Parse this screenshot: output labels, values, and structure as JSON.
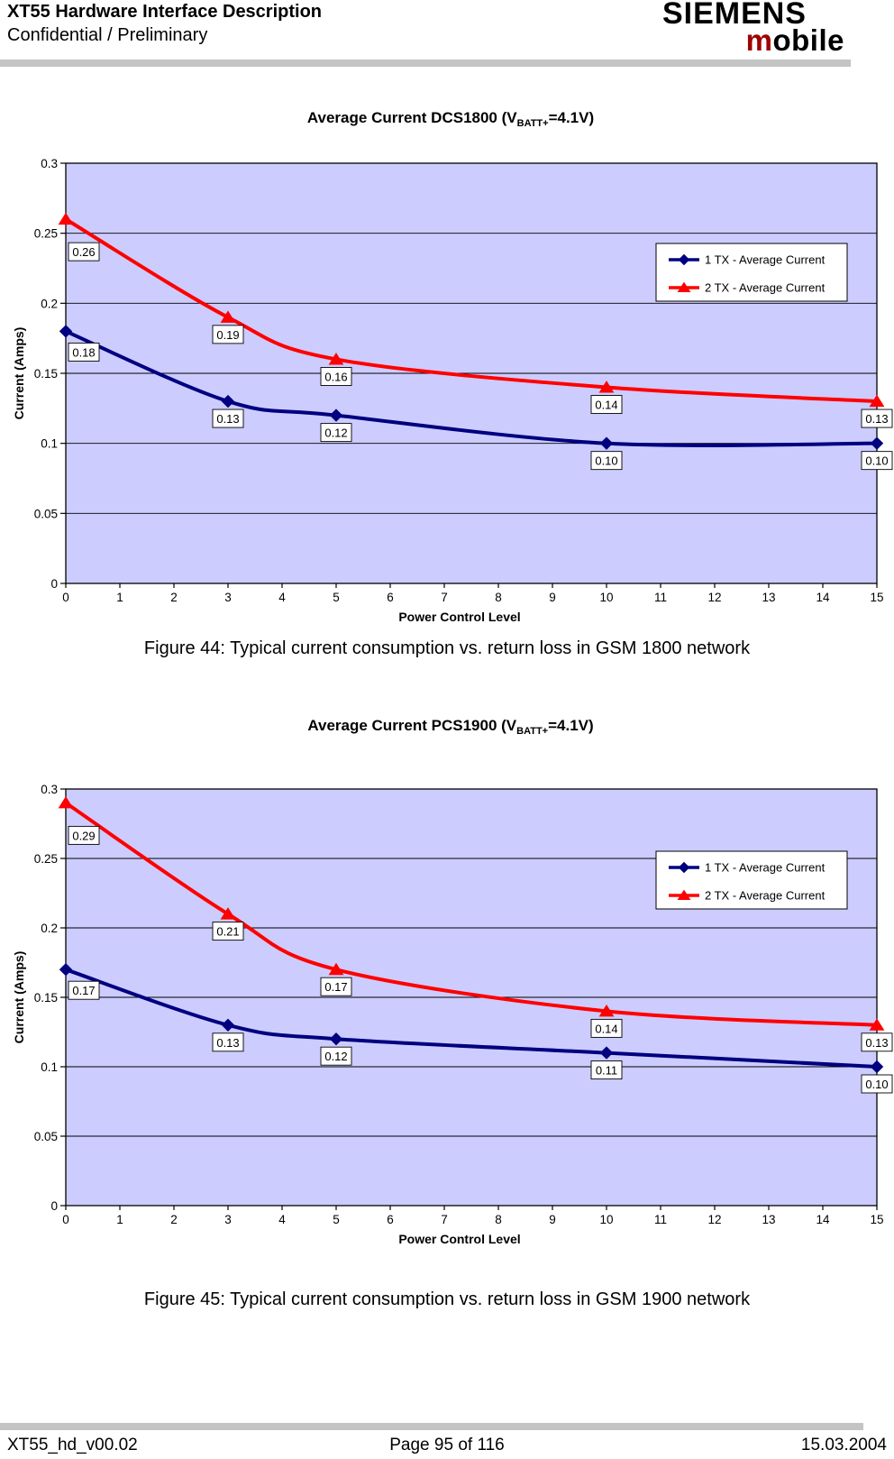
{
  "header": {
    "title": "XT55 Hardware Interface Description",
    "subtitle": "Confidential / Preliminary",
    "brand": {
      "name": "SIEMENS",
      "sub_accent": "m",
      "sub_rest": "obile"
    }
  },
  "figures": [
    {
      "caption": "Figure 44: Typical current consumption vs. return loss in GSM 1800 network"
    },
    {
      "caption": "Figure 45: Typical current consumption vs. return loss in GSM 1900 network"
    }
  ],
  "footer": {
    "doc_id": "XT55_hd_v00.02",
    "page_info": "Page 95 of 116",
    "date": "15.03.2004"
  },
  "chart_data": [
    {
      "type": "line",
      "title": {
        "prefix": "Average Current DCS1800 (V",
        "subscript": "BATT+",
        "suffix": "=4.1V)"
      },
      "xlabel": "Power Control Level",
      "ylabel": "Current (Amps)",
      "xlim": [
        0,
        15
      ],
      "ylim": [
        0,
        0.3
      ],
      "x_ticks": [
        "0",
        "1",
        "2",
        "3",
        "4",
        "5",
        "6",
        "7",
        "8",
        "9",
        "10",
        "11",
        "12",
        "13",
        "14",
        "15"
      ],
      "y_ticks": [
        {
          "value": 0,
          "label": "0"
        },
        {
          "value": 0.05,
          "label": "0.05"
        },
        {
          "value": 0.1,
          "label": "0.1"
        },
        {
          "value": 0.15,
          "label": "0.15"
        },
        {
          "value": 0.2,
          "label": "0.2"
        },
        {
          "value": 0.25,
          "label": "0.25"
        },
        {
          "value": 0.3,
          "label": "0.3"
        }
      ],
      "grid": true,
      "plot_bg": "#CCCCFF",
      "legend_position": "upper-right",
      "x": [
        0,
        3,
        5,
        10,
        15
      ],
      "series": [
        {
          "name": "1 TX - Average Current",
          "color": "#000080",
          "marker": "diamond",
          "values": [
            0.18,
            0.13,
            0.12,
            0.1,
            0.1
          ],
          "point_labels": [
            "0.18",
            "0.13",
            "0.12",
            "0.10",
            "0.10"
          ]
        },
        {
          "name": "2 TX - Average Current",
          "color": "#FF0000",
          "marker": "triangle",
          "values": [
            0.26,
            0.19,
            0.16,
            0.14,
            0.13
          ],
          "point_labels": [
            "0.26",
            "0.19",
            "0.16",
            "0.14",
            "0.13"
          ]
        }
      ]
    },
    {
      "type": "line",
      "title": {
        "prefix": "Average Current PCS1900 (V",
        "subscript": "BATT+",
        "suffix": "=4.1V)"
      },
      "xlabel": "Power Control Level",
      "ylabel": "Current (Amps)",
      "xlim": [
        0,
        15
      ],
      "ylim": [
        0,
        0.3
      ],
      "x_ticks": [
        "0",
        "1",
        "2",
        "3",
        "4",
        "5",
        "6",
        "7",
        "8",
        "9",
        "10",
        "11",
        "12",
        "13",
        "14",
        "15"
      ],
      "y_ticks": [
        {
          "value": 0,
          "label": "0"
        },
        {
          "value": 0.05,
          "label": "0.05"
        },
        {
          "value": 0.1,
          "label": "0.1"
        },
        {
          "value": 0.15,
          "label": "0.15"
        },
        {
          "value": 0.2,
          "label": "0.2"
        },
        {
          "value": 0.25,
          "label": "0.25"
        },
        {
          "value": 0.3,
          "label": "0.3"
        }
      ],
      "grid": true,
      "plot_bg": "#CCCCFF",
      "legend_position": "upper-right",
      "x": [
        0,
        3,
        5,
        10,
        15
      ],
      "series": [
        {
          "name": "1 TX - Average Current",
          "color": "#000080",
          "marker": "diamond",
          "values": [
            0.17,
            0.13,
            0.12,
            0.11,
            0.1
          ],
          "point_labels": [
            "0.17",
            "0.13",
            "0.12",
            "0.11",
            "0.10"
          ]
        },
        {
          "name": "2 TX - Average Current",
          "color": "#FF0000",
          "marker": "triangle",
          "values": [
            0.29,
            0.21,
            0.17,
            0.14,
            0.13
          ],
          "point_labels": [
            "0.29",
            "0.21",
            "0.17",
            "0.14",
            "0.13"
          ]
        }
      ]
    }
  ]
}
